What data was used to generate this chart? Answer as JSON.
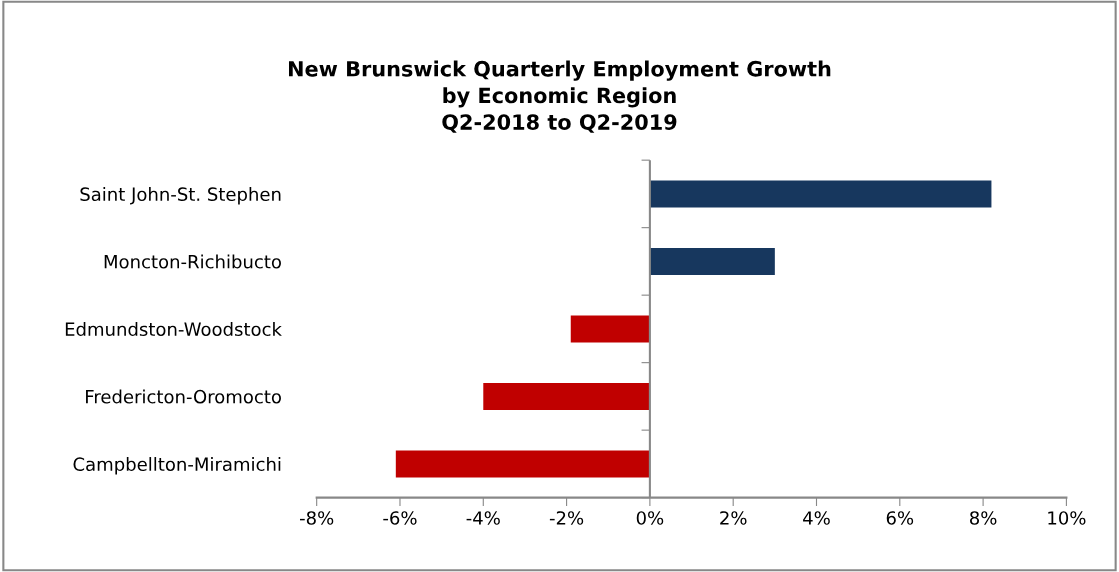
{
  "chart_data": {
    "type": "bar",
    "orientation": "horizontal",
    "title": "New Brunswick Quarterly Employment Growth\nby Economic Region\nQ2-2018 to Q2-2019",
    "categories": [
      "Saint John-St. Stephen",
      "Moncton-Richibucto",
      "Edmundston-Woodstock",
      "Fredericton-Oromocto",
      "Campbellton-Miramichi"
    ],
    "values": [
      8.2,
      3.0,
      -1.9,
      -4.0,
      -6.1
    ],
    "colors": [
      "#17375e",
      "#17375e",
      "#c00000",
      "#c00000",
      "#c00000"
    ],
    "xlim": [
      -8,
      10
    ],
    "xticks": [
      {
        "value": -8,
        "label": "-8%"
      },
      {
        "value": -6,
        "label": "-6%"
      },
      {
        "value": -4,
        "label": "-4%"
      },
      {
        "value": -2,
        "label": "-2%"
      },
      {
        "value": 0,
        "label": "0%"
      },
      {
        "value": 2,
        "label": "2%"
      },
      {
        "value": 4,
        "label": "4%"
      },
      {
        "value": 6,
        "label": "6%"
      },
      {
        "value": 8,
        "label": "8%"
      },
      {
        "value": 10,
        "label": "10%"
      }
    ],
    "ref_lines": [
      {
        "axis": "x",
        "value": 0,
        "color": "#888888"
      }
    ],
    "grid": false,
    "legend": false
  }
}
